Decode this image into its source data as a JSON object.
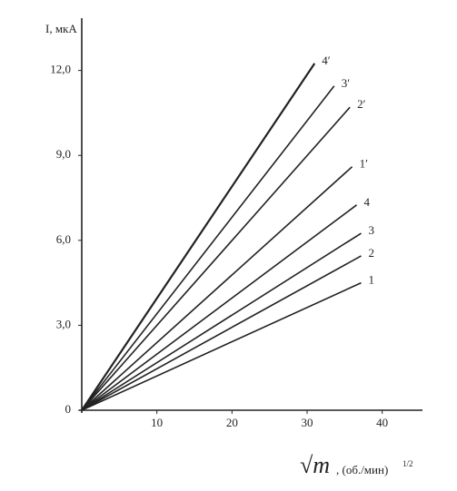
{
  "chart_data": {
    "type": "line",
    "y_label": "I, мкА",
    "x_label": "√m",
    "x_unit": ", (об./мин)",
    "x_unit_sup": "1/2",
    "xlim": [
      0,
      45
    ],
    "ylim": [
      0,
      13.7
    ],
    "xticks": [
      10,
      20,
      30,
      40
    ],
    "yticks": [
      0,
      {
        "value": 3,
        "label": "3,0"
      },
      {
        "value": 6,
        "label": "6,0"
      },
      {
        "value": 9,
        "label": "9,0"
      },
      {
        "value": 12,
        "label": "12,0"
      }
    ],
    "series": [
      {
        "name": "1",
        "color": "#222222",
        "x": [
          0,
          37.2
        ],
        "values": [
          0,
          4.5
        ]
      },
      {
        "name": "2",
        "color": "#222222",
        "x": [
          0,
          37.2
        ],
        "values": [
          0,
          5.45
        ]
      },
      {
        "name": "3",
        "color": "#222222",
        "x": [
          0,
          37.2
        ],
        "values": [
          0,
          6.25
        ]
      },
      {
        "name": "4",
        "color": "#222222",
        "x": [
          0,
          36.6
        ],
        "values": [
          0,
          7.25
        ]
      },
      {
        "name": "1′",
        "color": "#222222",
        "x": [
          0,
          36
        ],
        "values": [
          0,
          8.6
        ]
      },
      {
        "name": "2′",
        "color": "#222222",
        "x": [
          0,
          35.7
        ],
        "values": [
          0,
          10.7
        ]
      },
      {
        "name": "3′",
        "color": "#222222",
        "x": [
          0,
          33.6
        ],
        "values": [
          0,
          11.45
        ]
      },
      {
        "name": "4′",
        "color": "#222222",
        "x": [
          0,
          31
        ],
        "values": [
          0,
          12.25
        ]
      }
    ]
  }
}
